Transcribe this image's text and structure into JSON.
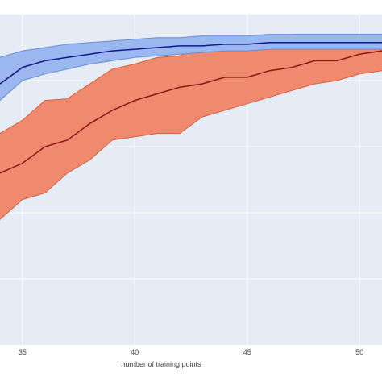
{
  "chart_data": {
    "type": "area",
    "title": "",
    "xlabel": "number of training points",
    "ylabel": "",
    "xlim": [
      34,
      51
    ],
    "ylim": [
      0.0,
      1.0
    ],
    "x_ticks": [
      35,
      40,
      45,
      50
    ],
    "grid": true,
    "legend": "none",
    "colors": {
      "plot_bg": "#e5ecf6",
      "grid": "#ffffff",
      "blue_band": "#9bb7f0",
      "blue_edge": "#6a8cd6",
      "blue_line": "#0d1a8c",
      "orange_band": "#f08a6e",
      "orange_edge": "#d8603f",
      "orange_line": "#8b1414",
      "tick_text": "#444444"
    },
    "series": [
      {
        "x": [
          34,
          35,
          36,
          37,
          38,
          39,
          40,
          41,
          42,
          43,
          44,
          45,
          46,
          47,
          48,
          49,
          50,
          51
        ],
        "mean": [
          0.79,
          0.84,
          0.86,
          0.87,
          0.88,
          0.89,
          0.895,
          0.9,
          0.905,
          0.905,
          0.91,
          0.91,
          0.915,
          0.915,
          0.915,
          0.915,
          0.915,
          0.915
        ],
        "upper": [
          0.87,
          0.89,
          0.9,
          0.91,
          0.915,
          0.92,
          0.925,
          0.93,
          0.93,
          0.935,
          0.935,
          0.935,
          0.94,
          0.94,
          0.94,
          0.94,
          0.94,
          0.94
        ],
        "lower": [
          0.74,
          0.8,
          0.82,
          0.835,
          0.85,
          0.86,
          0.87,
          0.875,
          0.88,
          0.885,
          0.89,
          0.89,
          0.895,
          0.895,
          0.895,
          0.895,
          0.895,
          0.895
        ]
      },
      {
        "x": [
          34,
          35,
          36,
          37,
          38,
          39,
          40,
          41,
          42,
          43,
          44,
          45,
          46,
          47,
          48,
          49,
          50,
          51
        ],
        "mean": [
          0.52,
          0.55,
          0.6,
          0.62,
          0.67,
          0.71,
          0.74,
          0.76,
          0.78,
          0.79,
          0.81,
          0.81,
          0.83,
          0.84,
          0.86,
          0.86,
          0.88,
          0.89
        ],
        "upper": [
          0.64,
          0.68,
          0.74,
          0.745,
          0.79,
          0.835,
          0.85,
          0.87,
          0.875,
          0.91,
          0.915,
          0.915,
          0.925,
          0.94,
          0.94,
          0.94,
          0.94,
          0.94
        ],
        "lower": [
          0.38,
          0.44,
          0.46,
          0.52,
          0.56,
          0.62,
          0.63,
          0.64,
          0.64,
          0.69,
          0.71,
          0.73,
          0.75,
          0.77,
          0.79,
          0.8,
          0.82,
          0.83
        ]
      }
    ]
  }
}
